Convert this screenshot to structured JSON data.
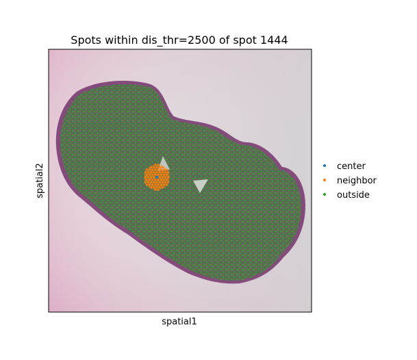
{
  "chart_data": {
    "type": "scatter",
    "title": "Spots within dis_thr=2500 of spot 1444",
    "xlabel": "spatial1",
    "ylabel": "spatial2",
    "grid": false,
    "legend_placement": "right",
    "series": [
      {
        "name": "center",
        "color": "#1f77b4"
      },
      {
        "name": "neighbor",
        "color": "#ff7f0e"
      },
      {
        "name": "outside",
        "color": "#2ca02c"
      }
    ],
    "background": "tissue histology image"
  }
}
